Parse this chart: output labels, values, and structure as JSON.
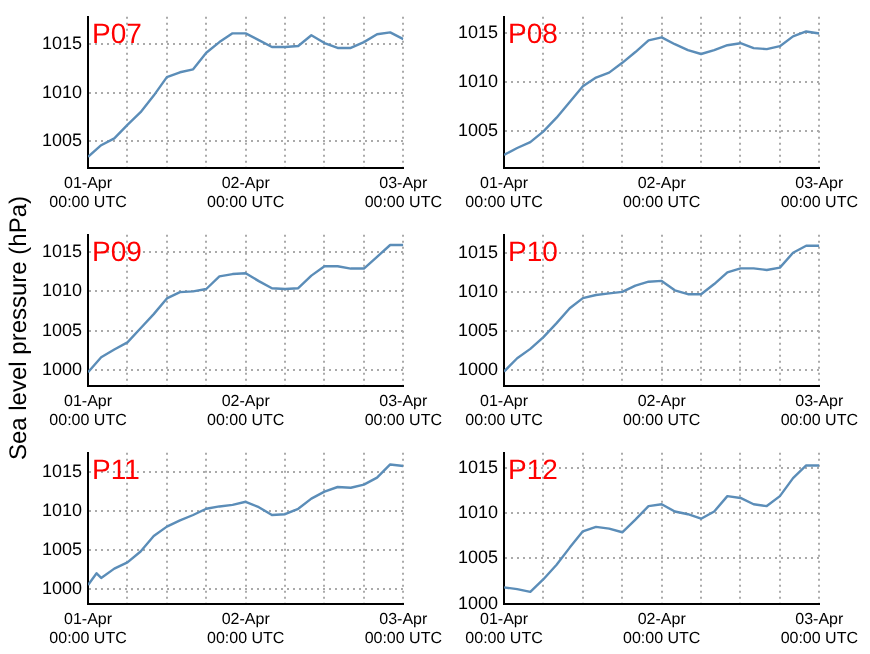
{
  "chart_data": [
    {
      "type": "line",
      "title": "P07",
      "x": [
        "--04-01T00:00",
        "--04-01T02:00",
        "--04-01T04:00",
        "--04-01T06:00",
        "--04-01T08:00",
        "--04-01T10:00",
        "--04-01T12:00",
        "--04-01T14:00",
        "--04-01T16:00",
        "--04-01T18:00",
        "--04-01T20:00",
        "--04-01T22:00",
        "--04-02T00:00",
        "--04-02T02:00",
        "--04-02T04:00",
        "--04-02T06:00",
        "--04-02T08:00",
        "--04-02T10:00",
        "--04-02T12:00",
        "--04-02T14:00",
        "--04-02T16:00",
        "--04-02T18:00",
        "--04-02T20:00",
        "--04-02T22:00",
        "--04-03T00:00"
      ],
      "series": [
        {
          "color": "#5b8db8",
          "values": [
            1003.4,
            1004.6,
            1005.3,
            1006.7,
            1008.0,
            1009.7,
            1011.6,
            1012.1,
            1012.4,
            1014.1,
            1015.2,
            1016.1,
            1016.1,
            1015.4,
            1014.7,
            1014.7,
            1014.8,
            1015.9,
            1015.1,
            1014.6,
            1014.6,
            1015.2,
            1016.0,
            1016.2,
            1015.5
          ]
        }
      ],
      "xlim": [
        "--04-01T00:00",
        "--04-03T00:00"
      ],
      "xticks": [
        {
          "value": "--04-01T00:00",
          "label": "01-Apr 00:00 UTC"
        },
        {
          "value": "--04-01T06:00",
          "label": null
        },
        {
          "value": "--04-01T12:00",
          "label": null
        },
        {
          "value": "--04-01T18:00",
          "label": null
        },
        {
          "value": "--04-02T00:00",
          "label": "02-Apr 00:00 UTC"
        },
        {
          "value": "--04-02T06:00",
          "label": null
        },
        {
          "value": "--04-02T12:00",
          "label": null
        },
        {
          "value": "--04-02T18:00",
          "label": null
        },
        {
          "value": "--04-03T00:00",
          "label": "03-Apr 00:00 UTC"
        }
      ],
      "ylim": [
        1002.3,
        1017.8
      ],
      "yticks": [
        1005,
        1010,
        1015
      ],
      "grid": true,
      "legend": false,
      "marker": "none",
      "line_style": "solid"
    },
    {
      "type": "line",
      "title": "P08",
      "x": [
        "--04-01T00:00",
        "--04-01T02:00",
        "--04-01T04:00",
        "--04-01T06:00",
        "--04-01T08:00",
        "--04-01T10:00",
        "--04-01T12:00",
        "--04-01T14:00",
        "--04-01T16:00",
        "--04-01T18:00",
        "--04-01T20:00",
        "--04-01T22:00",
        "--04-02T00:00",
        "--04-02T02:00",
        "--04-02T04:00",
        "--04-02T06:00",
        "--04-02T08:00",
        "--04-02T10:00",
        "--04-02T12:00",
        "--04-02T14:00",
        "--04-02T16:00",
        "--04-02T18:00",
        "--04-02T20:00",
        "--04-02T22:00",
        "--04-03T00:00"
      ],
      "series": [
        {
          "color": "#5b8db8",
          "values": [
            1002.6,
            1003.3,
            1003.9,
            1005.0,
            1006.4,
            1008.0,
            1009.6,
            1010.5,
            1011.0,
            1012.0,
            1013.1,
            1014.3,
            1014.6,
            1013.9,
            1013.3,
            1012.9,
            1013.3,
            1013.8,
            1014.0,
            1013.5,
            1013.4,
            1013.7,
            1014.7,
            1015.2,
            1015.0
          ]
        }
      ],
      "xlim": [
        "--04-01T00:00",
        "--04-03T00:00"
      ],
      "xticks": [
        {
          "value": "--04-01T00:00",
          "label": "01-Apr 00:00 UTC"
        },
        {
          "value": "--04-01T06:00",
          "label": null
        },
        {
          "value": "--04-01T12:00",
          "label": null
        },
        {
          "value": "--04-01T18:00",
          "label": null
        },
        {
          "value": "--04-02T00:00",
          "label": "02-Apr 00:00 UTC"
        },
        {
          "value": "--04-02T06:00",
          "label": null
        },
        {
          "value": "--04-02T12:00",
          "label": null
        },
        {
          "value": "--04-02T18:00",
          "label": null
        },
        {
          "value": "--04-03T00:00",
          "label": "03-Apr 00:00 UTC"
        }
      ],
      "ylim": [
        1001.3,
        1016.7
      ],
      "yticks": [
        1005,
        1010,
        1015
      ],
      "grid": true,
      "legend": false,
      "marker": "none",
      "line_style": "solid"
    },
    {
      "type": "line",
      "title": "P09",
      "ylabel": "Sea level pressure (hPa)",
      "x": [
        "--04-01T00:00",
        "--04-01T02:00",
        "--04-01T04:00",
        "--04-01T06:00",
        "--04-01T08:00",
        "--04-01T10:00",
        "--04-01T12:00",
        "--04-01T14:00",
        "--04-01T16:00",
        "--04-01T18:00",
        "--04-01T20:00",
        "--04-01T22:00",
        "--04-02T00:00",
        "--04-02T02:00",
        "--04-02T04:00",
        "--04-02T06:00",
        "--04-02T08:00",
        "--04-02T10:00",
        "--04-02T12:00",
        "--04-02T14:00",
        "--04-02T16:00",
        "--04-02T18:00",
        "--04-02T20:00",
        "--04-02T22:00",
        "--04-03T00:00"
      ],
      "series": [
        {
          "color": "#5b8db8",
          "values": [
            999.7,
            1001.6,
            1002.6,
            1003.5,
            1005.3,
            1007.1,
            1009.1,
            1009.9,
            1010.0,
            1010.3,
            1011.9,
            1012.2,
            1012.3,
            1011.3,
            1010.4,
            1010.3,
            1010.4,
            1012.0,
            1013.2,
            1013.2,
            1012.9,
            1012.9,
            1014.4,
            1015.9,
            1015.9
          ]
        }
      ],
      "xlim": [
        "--04-01T00:00",
        "--04-03T00:00"
      ],
      "xticks": [
        {
          "value": "--04-01T00:00",
          "label": "01-Apr 00:00 UTC"
        },
        {
          "value": "--04-01T06:00",
          "label": null
        },
        {
          "value": "--04-01T12:00",
          "label": null
        },
        {
          "value": "--04-01T18:00",
          "label": null
        },
        {
          "value": "--04-02T00:00",
          "label": "02-Apr 00:00 UTC"
        },
        {
          "value": "--04-02T06:00",
          "label": null
        },
        {
          "value": "--04-02T12:00",
          "label": null
        },
        {
          "value": "--04-02T18:00",
          "label": null
        },
        {
          "value": "--04-03T00:00",
          "label": "03-Apr 00:00 UTC"
        }
      ],
      "ylim": [
        998,
        1017.2
      ],
      "yticks": [
        1000,
        1005,
        1010,
        1015
      ],
      "grid": true,
      "legend": false,
      "marker": "none",
      "line_style": "solid"
    },
    {
      "type": "line",
      "title": "P10",
      "x": [
        "--04-01T00:00",
        "--04-01T02:00",
        "--04-01T04:00",
        "--04-01T06:00",
        "--04-01T08:00",
        "--04-01T10:00",
        "--04-01T12:00",
        "--04-01T14:00",
        "--04-01T16:00",
        "--04-01T18:00",
        "--04-01T20:00",
        "--04-01T22:00",
        "--04-02T00:00",
        "--04-02T02:00",
        "--04-02T04:00",
        "--04-02T06:00",
        "--04-02T08:00",
        "--04-02T10:00",
        "--04-02T12:00",
        "--04-02T14:00",
        "--04-02T16:00",
        "--04-02T18:00",
        "--04-02T20:00",
        "--04-02T22:00",
        "--04-03T00:00"
      ],
      "series": [
        {
          "color": "#5b8db8",
          "values": [
            999.8,
            1001.5,
            1002.7,
            1004.2,
            1006.0,
            1007.9,
            1009.2,
            1009.6,
            1009.8,
            1010.0,
            1010.8,
            1011.3,
            1011.4,
            1010.2,
            1009.7,
            1009.7,
            1011.0,
            1012.5,
            1013.0,
            1013.0,
            1012.8,
            1013.1,
            1015.0,
            1015.9,
            1015.9
          ]
        }
      ],
      "xlim": [
        "--04-01T00:00",
        "--04-03T00:00"
      ],
      "xticks": [
        {
          "value": "--04-01T00:00",
          "label": "01-Apr 00:00 UTC"
        },
        {
          "value": "--04-01T06:00",
          "label": null
        },
        {
          "value": "--04-01T12:00",
          "label": null
        },
        {
          "value": "--04-01T18:00",
          "label": null
        },
        {
          "value": "--04-02T00:00",
          "label": "02-Apr 00:00 UTC"
        },
        {
          "value": "--04-02T06:00",
          "label": null
        },
        {
          "value": "--04-02T12:00",
          "label": null
        },
        {
          "value": "--04-02T18:00",
          "label": null
        },
        {
          "value": "--04-03T00:00",
          "label": "03-Apr 00:00 UTC"
        }
      ],
      "ylim": [
        998,
        1017.3
      ],
      "yticks": [
        1000,
        1005,
        1010,
        1015
      ],
      "grid": true,
      "legend": false,
      "marker": "none",
      "line_style": "solid"
    },
    {
      "type": "line",
      "title": "P11",
      "x": [
        "--04-01T00:00",
        "--04-01T01:18",
        "--04-01T02:00",
        "--04-01T04:00",
        "--04-01T06:00",
        "--04-01T08:00",
        "--04-01T10:00",
        "--04-01T12:00",
        "--04-01T14:00",
        "--04-01T16:00",
        "--04-01T18:00",
        "--04-01T20:00",
        "--04-01T22:00",
        "--04-02T00:00",
        "--04-02T02:00",
        "--04-02T04:00",
        "--04-02T06:00",
        "--04-02T08:00",
        "--04-02T10:00",
        "--04-02T12:00",
        "--04-02T14:00",
        "--04-02T16:00",
        "--04-02T18:00",
        "--04-02T20:00",
        "--04-02T22:00",
        "--04-03T00:00"
      ],
      "series": [
        {
          "color": "#5b8db8",
          "values": [
            1000.5,
            1002.0,
            1001.4,
            1002.6,
            1003.4,
            1004.8,
            1006.8,
            1008.0,
            1008.8,
            1009.5,
            1010.3,
            1010.6,
            1010.8,
            1011.2,
            1010.5,
            1009.5,
            1009.6,
            1010.3,
            1011.6,
            1012.5,
            1013.1,
            1013.0,
            1013.4,
            1014.3,
            1016.0,
            1015.8
          ]
        }
      ],
      "xlim": [
        "--04-01T00:00",
        "--04-03T00:00"
      ],
      "xticks": [
        {
          "value": "--04-01T00:00",
          "label": "01-Apr 00:00 UTC"
        },
        {
          "value": "--04-01T06:00",
          "label": null
        },
        {
          "value": "--04-01T12:00",
          "label": null
        },
        {
          "value": "--04-01T18:00",
          "label": null
        },
        {
          "value": "--04-02T00:00",
          "label": "02-Apr 00:00 UTC"
        },
        {
          "value": "--04-02T06:00",
          "label": null
        },
        {
          "value": "--04-02T12:00",
          "label": null
        },
        {
          "value": "--04-02T18:00",
          "label": null
        },
        {
          "value": "--04-03T00:00",
          "label": "03-Apr 00:00 UTC"
        }
      ],
      "ylim": [
        998.1,
        1017.5
      ],
      "yticks": [
        1000,
        1005,
        1010,
        1015
      ],
      "grid": true,
      "legend": false,
      "marker": "none",
      "line_style": "solid"
    },
    {
      "type": "line",
      "title": "P12",
      "x": [
        "--04-01T00:00",
        "--04-01T02:00",
        "--04-01T04:00",
        "--04-01T06:00",
        "--04-01T08:00",
        "--04-01T10:00",
        "--04-01T12:00",
        "--04-01T14:00",
        "--04-01T16:00",
        "--04-01T18:00",
        "--04-01T20:00",
        "--04-01T22:00",
        "--04-02T00:00",
        "--04-02T02:00",
        "--04-02T04:00",
        "--04-02T06:00",
        "--04-02T08:00",
        "--04-02T10:00",
        "--04-02T12:00",
        "--04-02T14:00",
        "--04-02T16:00",
        "--04-02T18:00",
        "--04-02T20:00",
        "--04-02T22:00",
        "--04-03T00:00"
      ],
      "series": [
        {
          "color": "#5b8db8",
          "values": [
            1001.8,
            1001.6,
            1001.3,
            1002.7,
            1004.3,
            1006.2,
            1008.0,
            1008.5,
            1008.3,
            1007.9,
            1009.3,
            1010.8,
            1011.0,
            1010.2,
            1009.9,
            1009.4,
            1010.2,
            1011.9,
            1011.7,
            1011.0,
            1010.8,
            1011.9,
            1013.9,
            1015.3,
            1015.3
          ]
        }
      ],
      "xlim": [
        "--04-01T00:00",
        "--04-03T00:00"
      ],
      "xticks": [
        {
          "value": "--04-01T00:00",
          "label": "01-Apr 00:00 UTC"
        },
        {
          "value": "--04-01T06:00",
          "label": null
        },
        {
          "value": "--04-01T12:00",
          "label": null
        },
        {
          "value": "--04-01T18:00",
          "label": null
        },
        {
          "value": "--04-02T00:00",
          "label": "02-Apr 00:00 UTC"
        },
        {
          "value": "--04-02T06:00",
          "label": null
        },
        {
          "value": "--04-02T12:00",
          "label": null
        },
        {
          "value": "--04-02T18:00",
          "label": null
        },
        {
          "value": "--04-03T00:00",
          "label": "03-Apr 00:00 UTC"
        }
      ],
      "ylim": [
        1000,
        1016.7
      ],
      "yticks": [
        1000,
        1005,
        1010,
        1015
      ],
      "grid": true,
      "legend": false,
      "marker": "none",
      "line_style": "solid"
    }
  ]
}
